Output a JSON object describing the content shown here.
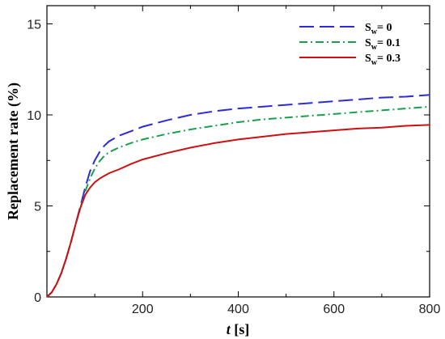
{
  "chart_data": {
    "type": "line",
    "title": "",
    "xlabel_italic": "t",
    "xlabel_rest": " [s]",
    "ylabel": "Replacement rate (%)",
    "xlim": [
      0,
      800
    ],
    "ylim": [
      0,
      16
    ],
    "xticks": [
      200,
      400,
      600,
      800
    ],
    "yticks": [
      0,
      5,
      10,
      15
    ],
    "grid": false,
    "legend_position": "top-right",
    "series": [
      {
        "name_main": "S",
        "name_sub": "w",
        "name_rest": "= 0",
        "color": "#2b2bd9",
        "dash": "long-dash",
        "x": [
          0,
          10,
          20,
          30,
          40,
          50,
          60,
          70,
          80,
          90,
          100,
          110,
          120,
          130,
          150,
          175,
          200,
          250,
          300,
          350,
          400,
          450,
          500,
          550,
          600,
          650,
          700,
          750,
          800
        ],
        "y": [
          0,
          0.25,
          0.7,
          1.3,
          2.1,
          3.0,
          4.0,
          5.0,
          6.0,
          6.9,
          7.5,
          7.95,
          8.3,
          8.55,
          8.85,
          9.1,
          9.35,
          9.7,
          10.0,
          10.2,
          10.35,
          10.45,
          10.55,
          10.65,
          10.75,
          10.85,
          10.95,
          11.0,
          11.1
        ]
      },
      {
        "name_main": "S",
        "name_sub": "w",
        "name_rest": "= 0.1",
        "color": "#1aa04a",
        "dash": "dash-dot",
        "x": [
          0,
          10,
          20,
          30,
          40,
          50,
          60,
          70,
          80,
          90,
          100,
          110,
          120,
          130,
          150,
          175,
          200,
          250,
          300,
          350,
          400,
          450,
          500,
          550,
          600,
          650,
          700,
          750,
          800
        ],
        "y": [
          0,
          0.25,
          0.7,
          1.3,
          2.1,
          3.0,
          4.0,
          4.9,
          5.8,
          6.5,
          7.05,
          7.45,
          7.75,
          7.95,
          8.2,
          8.45,
          8.65,
          8.95,
          9.2,
          9.4,
          9.6,
          9.75,
          9.85,
          9.95,
          10.05,
          10.15,
          10.25,
          10.35,
          10.45
        ]
      },
      {
        "name_main": "S",
        "name_sub": "w",
        "name_rest": "= 0.3",
        "color": "#cc1111",
        "dash": "solid",
        "x": [
          0,
          10,
          20,
          30,
          40,
          50,
          60,
          70,
          80,
          90,
          100,
          110,
          120,
          130,
          150,
          175,
          200,
          250,
          300,
          350,
          400,
          450,
          500,
          550,
          600,
          650,
          700,
          750,
          800
        ],
        "y": [
          0,
          0.25,
          0.7,
          1.3,
          2.1,
          3.0,
          4.0,
          4.9,
          5.6,
          6.0,
          6.3,
          6.5,
          6.65,
          6.8,
          7.0,
          7.3,
          7.55,
          7.9,
          8.2,
          8.45,
          8.65,
          8.8,
          8.95,
          9.05,
          9.15,
          9.25,
          9.3,
          9.4,
          9.45
        ]
      }
    ]
  }
}
